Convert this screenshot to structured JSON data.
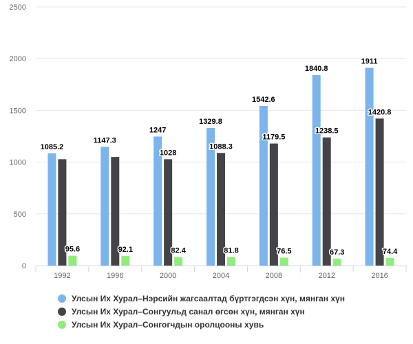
{
  "chart_data": {
    "type": "bar",
    "categories": [
      "1992",
      "1996",
      "2000",
      "2004",
      "2008",
      "2012",
      "2016"
    ],
    "series": [
      {
        "name": "Улсын Их Хурал–Нэрсийн жагсаалтад бүртгэгдсэн хүн, мянган хүн",
        "color": "#7cb5ec",
        "values": [
          1085.2,
          1147.3,
          1247,
          1329.8,
          1542.6,
          1840.8,
          1911
        ],
        "labels": [
          "1085.2",
          "1147.3",
          "1247",
          "1329.8",
          "1542.6",
          "1840.8",
          "1911"
        ]
      },
      {
        "name": "Улсын Их Хурал–Сонгуульд санал өгсөн хүн, мянган хүн",
        "color": "#434348",
        "values": [
          1028,
          1050,
          1028,
          1088.3,
          1179.5,
          1238.5,
          1420.8
        ],
        "labels": [
          "",
          "",
          "1028",
          "1088.3",
          "1179.5",
          "1238.5",
          "1420.8"
        ]
      },
      {
        "name": "Улсын Их Хурал–Сонгогчдын оролцооны хувь",
        "color": "#90ed7d",
        "values": [
          95.6,
          92.1,
          82.4,
          81.8,
          76.5,
          67.3,
          74.4
        ],
        "labels": [
          "95.6",
          "92.1",
          "82.4",
          "81.8",
          "76.5",
          "67.3",
          "74.4"
        ]
      }
    ],
    "y_ticks": [
      "0",
      "500",
      "1000",
      "1500",
      "2000",
      "2500"
    ],
    "ylim": [
      0,
      2500
    ],
    "grid": true,
    "legend_position": "bottom-left"
  }
}
